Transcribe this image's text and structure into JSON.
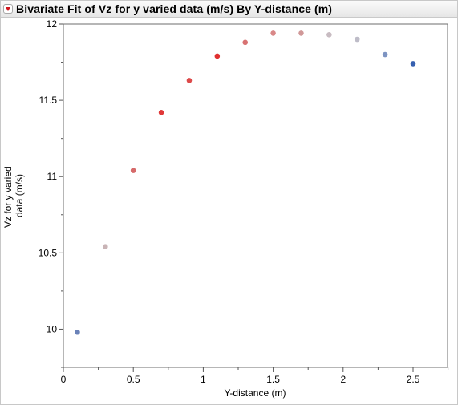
{
  "report": {
    "title": "Bivariate Fit of Vz for y varied data (m/s) By Y-distance (m)"
  },
  "chart_data": {
    "type": "scatter",
    "title": "Bivariate Fit of Vz for y varied data (m/s) By Y-distance (m)",
    "xlabel": "Y-distance (m)",
    "ylabel_lines": [
      "Vz for y varied",
      "data (m/s)"
    ],
    "xlim": [
      0,
      2.75
    ],
    "ylim": [
      9.75,
      12
    ],
    "x_ticks": [
      0,
      0.5,
      1,
      1.5,
      2,
      2.5
    ],
    "x_tick_labels": [
      "0",
      "0.5",
      "1",
      "1.5",
      "2",
      "2.5"
    ],
    "x_minor_ticks": [
      0.25,
      0.75,
      1.25,
      1.75,
      2.25,
      2.75
    ],
    "y_ticks": [
      10,
      10.5,
      11,
      11.5,
      12
    ],
    "y_tick_labels": [
      "10",
      "10.5",
      "11",
      "11.5",
      "12"
    ],
    "y_minor_ticks": [
      9.75,
      10.25,
      10.75,
      11.25,
      11.75
    ],
    "grid": false,
    "points": [
      {
        "x": 0.1,
        "y": 9.98,
        "color": "#6a82b8"
      },
      {
        "x": 0.3,
        "y": 10.54,
        "color": "#c9b4b6"
      },
      {
        "x": 0.5,
        "y": 11.04,
        "color": "#d66a6a"
      },
      {
        "x": 0.7,
        "y": 11.42,
        "color": "#e03838"
      },
      {
        "x": 0.9,
        "y": 11.63,
        "color": "#dd4a4a"
      },
      {
        "x": 1.1,
        "y": 11.79,
        "color": "#e03030"
      },
      {
        "x": 1.3,
        "y": 11.88,
        "color": "#d87272"
      },
      {
        "x": 1.5,
        "y": 11.94,
        "color": "#d98888"
      },
      {
        "x": 1.7,
        "y": 11.94,
        "color": "#d09898"
      },
      {
        "x": 1.9,
        "y": 11.93,
        "color": "#c8bcc2"
      },
      {
        "x": 2.1,
        "y": 11.9,
        "color": "#bebcc8"
      },
      {
        "x": 2.3,
        "y": 11.8,
        "color": "#7d94c2"
      },
      {
        "x": 2.5,
        "y": 11.74,
        "color": "#3660b0"
      }
    ]
  }
}
